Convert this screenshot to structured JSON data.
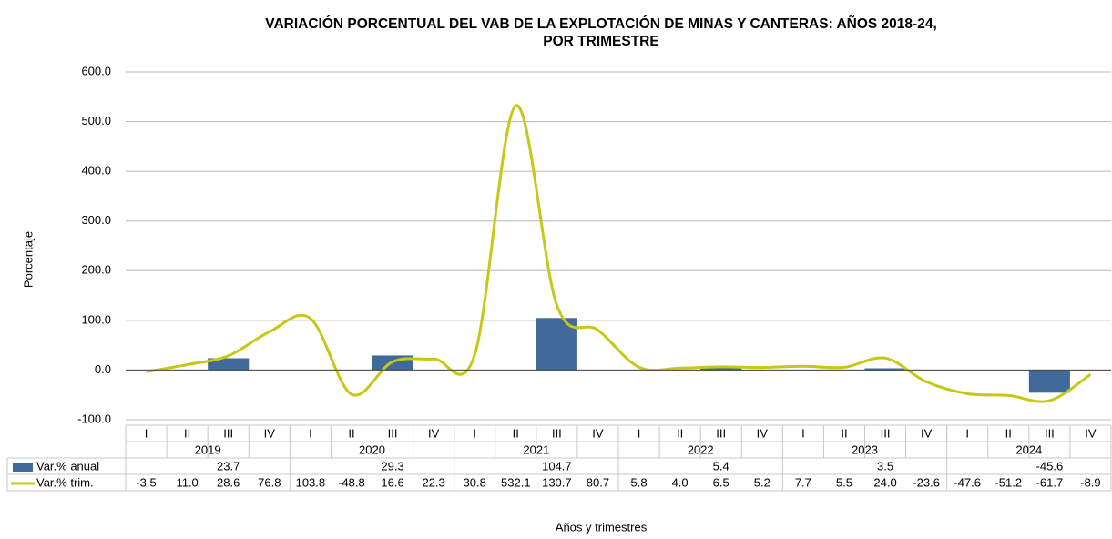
{
  "chart_data": {
    "type": "bar-line",
    "title": [
      "VARIACIÓN PORCENTUAL DEL VAB DE LA EXPLOTACIÓN DE MINAS Y CANTERAS: AÑOS 2018-24,",
      "POR TRIMESTRE"
    ],
    "y_label": "Porcentaje",
    "x_label": "Años y trimestres",
    "categories": [
      "I",
      "II",
      "III",
      "IV",
      "I",
      "II",
      "III",
      "IV",
      "I",
      "II",
      "III",
      "IV",
      "I",
      "II",
      "III",
      "IV",
      "I",
      "II",
      "III",
      "IV",
      "I",
      "II",
      "III",
      "IV"
    ],
    "years": [
      "2019",
      "2020",
      "2021",
      "2022",
      "2023",
      "2024"
    ],
    "ylim": [
      -100,
      600
    ],
    "yticks": [
      {
        "value": -100,
        "label": "-100.0"
      },
      {
        "value": 0,
        "label": "0.0"
      },
      {
        "value": 100,
        "label": "100.0"
      },
      {
        "value": 200,
        "label": "200.0"
      },
      {
        "value": 300,
        "label": "300.0"
      },
      {
        "value": 400,
        "label": "400.0"
      },
      {
        "value": 500,
        "label": "500.0"
      },
      {
        "value": 600,
        "label": "600.0"
      }
    ],
    "grid": true,
    "series": [
      {
        "name": "Var.% anual",
        "type": "bar",
        "color": "#41699a",
        "values": [
          null,
          null,
          23.7,
          null,
          null,
          null,
          29.3,
          null,
          null,
          null,
          104.7,
          null,
          null,
          null,
          5.4,
          null,
          null,
          null,
          3.5,
          null,
          null,
          null,
          -45.6,
          null
        ]
      },
      {
        "name": "Var.% trim.",
        "type": "line",
        "color": "#c8c814",
        "values": [
          -3.5,
          11.0,
          28.6,
          76.8,
          103.8,
          -48.8,
          16.6,
          22.3,
          30.8,
          532.1,
          130.7,
          80.7,
          5.8,
          4.0,
          6.5,
          5.2,
          7.7,
          5.5,
          24.0,
          -23.6,
          -47.6,
          -51.2,
          -61.7,
          -8.9
        ],
        "value_labels": [
          "-3.5",
          "11.0",
          "28.6",
          "76.8",
          "103.8",
          "-48.8",
          "16.6",
          "22.3",
          "30.8",
          "532.1",
          "130.7",
          "80.7",
          "5.8",
          "4.0",
          "6.5",
          "5.2",
          "7.7",
          "5.5",
          "24.0",
          "-23.6",
          "-47.6",
          "-51.2",
          "-61.7",
          "-8.9"
        ]
      }
    ]
  }
}
